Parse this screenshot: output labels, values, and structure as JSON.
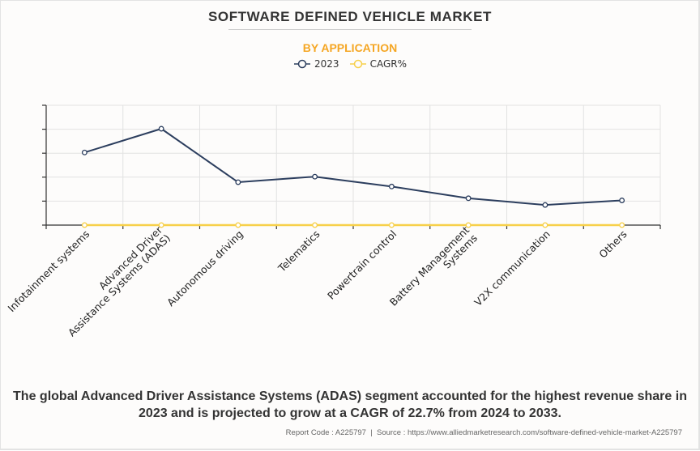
{
  "header": {
    "title": "SOFTWARE DEFINED VEHICLE MARKET",
    "subtitle": "BY APPLICATION"
  },
  "legend": [
    {
      "label": "2023",
      "color": "#2c3e5e"
    },
    {
      "label": "CAGR%",
      "color": "#f7d04a"
    }
  ],
  "colors": {
    "series_2023": "#2c3e5e",
    "series_cagr": "#f7d04a",
    "subtitle": "#f5a623",
    "grid": "#e2e2e2",
    "axis": "#333333"
  },
  "chart_data": {
    "type": "line",
    "title": "SOFTWARE DEFINED VEHICLE MARKET",
    "subtitle": "BY APPLICATION",
    "xlabel": "",
    "ylabel": "",
    "categories": [
      [
        "Infotainment systems"
      ],
      [
        "Advanced Driver",
        "Assistance Systems (ADAS)"
      ],
      [
        "Autonomous driving"
      ],
      [
        "Telematics"
      ],
      [
        "Powertrain control"
      ],
      [
        "Battery Management",
        "Systems"
      ],
      [
        "V2X communication"
      ],
      [
        "Others"
      ]
    ],
    "series": [
      {
        "name": "2023",
        "values": [
          3.03,
          4.02,
          1.79,
          2.02,
          1.61,
          1.12,
          0.84,
          1.03
        ]
      },
      {
        "name": "CAGR%",
        "values": [
          0,
          0,
          0,
          0,
          0,
          0,
          0,
          0
        ]
      }
    ],
    "ylim": [
      0,
      5
    ],
    "y_ticks": [
      0,
      1,
      2,
      3,
      4,
      5
    ],
    "y_tick_labels_visible": false,
    "grid": true,
    "legend_position": "top-center"
  },
  "footer": {
    "summary_line1": "The global Advanced Driver Assistance Systems (ADAS) segment accounted for the highest revenue share in",
    "summary_line2": "2023 and is projected to grow at a CAGR of 22.7% from 2024 to 2033.",
    "source": "Report Code : A225797  |  Source : https://www.alliedmarketresearch.com/software-defined-vehicle-market-A225797"
  }
}
